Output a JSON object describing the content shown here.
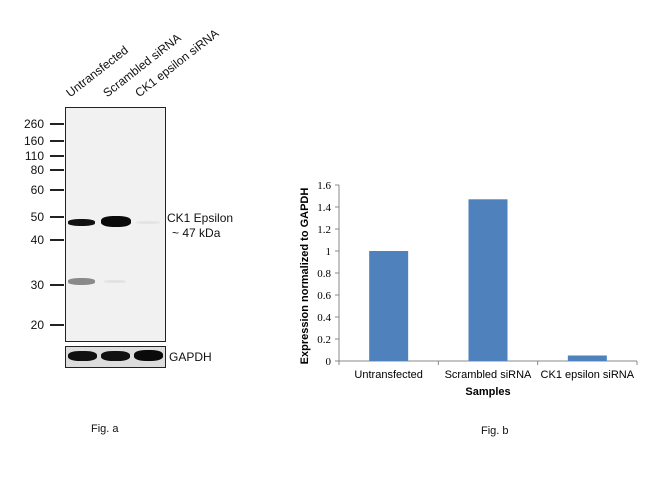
{
  "figure_a": {
    "caption": "Fig. a",
    "lanes": [
      "Untransfected",
      "Scrambled siRNA",
      "CK1 epsilon siRNA"
    ],
    "markers": [
      "260",
      "160",
      "110",
      "80",
      "60",
      "50",
      "40",
      "30",
      "20"
    ],
    "target_label": "CK1 Epsilon",
    "target_size": "~ 47 kDa",
    "loading_control": "GAPDH"
  },
  "figure_b": {
    "caption": "Fig. b"
  },
  "chart_data": {
    "type": "bar",
    "categories": [
      "Untransfected",
      "Scrambled siRNA",
      "CK1 epsilon siRNA"
    ],
    "values": [
      1.0,
      1.47,
      0.05
    ],
    "xlabel": "Samples",
    "ylabel": "Expression normalized to GAPDH",
    "ylim": [
      0,
      1.6
    ],
    "yticks": [
      "0",
      "0.2",
      "0.4",
      "0.6",
      "0.8",
      "1",
      "1.2",
      "1.4",
      "1.6"
    ],
    "grid": false,
    "bar_color": "#4f81bd"
  }
}
